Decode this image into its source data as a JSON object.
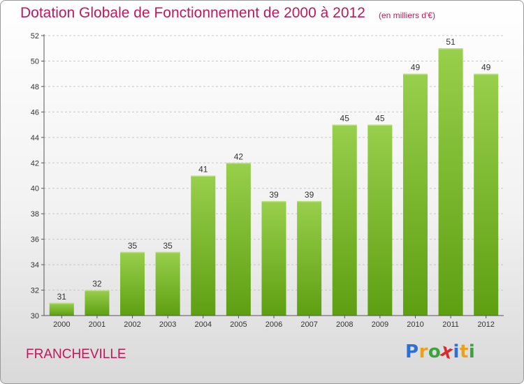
{
  "chart_data": {
    "type": "bar",
    "title": "Dotation Globale de Fonctionnement de 2000 à 2012",
    "subtitle": "(en milliers d'€)",
    "categories": [
      "2000",
      "2001",
      "2002",
      "2003",
      "2004",
      "2005",
      "2006",
      "2007",
      "2008",
      "2009",
      "2010",
      "2011",
      "2012"
    ],
    "values": [
      31,
      32,
      35,
      35,
      41,
      42,
      39,
      39,
      45,
      45,
      49,
      51,
      49
    ],
    "data_labels": [
      "31",
      "32",
      "35",
      "35",
      "41",
      "42",
      "39",
      "39",
      "45",
      "45",
      "49",
      "51",
      "49"
    ],
    "ylim": [
      30,
      52
    ],
    "yticks": [
      30,
      32,
      34,
      36,
      38,
      40,
      42,
      44,
      46,
      48,
      50,
      52
    ],
    "grid": "horizontal dashed",
    "bar_color_top": "#98cf4c",
    "bar_color_bottom": "#5e9f12",
    "xlabel": "",
    "ylabel": ""
  },
  "footer": {
    "place": "FRANCHEVILLE",
    "logo_letters": [
      "P",
      "r",
      "o",
      "x",
      "i",
      "t",
      "i"
    ],
    "logo_colors": [
      "#2e6fd3",
      "#e8a21b",
      "#3aa33a",
      "#d92b2b",
      "#2e6fd3",
      "#e8a21b",
      "#3aa33a"
    ]
  },
  "colors": {
    "title": "#c0185a",
    "axis": "#555555",
    "grid": "#c8c8c8"
  }
}
